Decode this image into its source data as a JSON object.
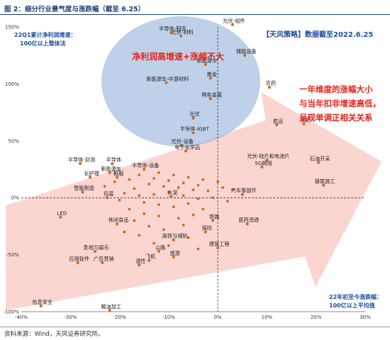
{
  "figure": {
    "title": "图 2：细分行业景气度与涨跌幅（截至 6.25）",
    "source": "资料来源：Wind，天风证券研究所。"
  },
  "annotations": {
    "y_note_line1": "22Q1累计净利润增速：",
    "y_note_line2": "100亿以上整体法",
    "x_note_line1": "22年初至今涨跌幅：",
    "x_note_line2": "100亿以上平均值",
    "ellipse_text": "净利润高增速+涨幅不大",
    "strategy_text": "【天风策略】数据截至2022.6.25",
    "arrow_text_line1": "一年维度的涨幅大小",
    "arrow_text_line2": "与当年扣非增速高低，",
    "arrow_text_line3": "呈现单调正相关关系"
  },
  "colors": {
    "point": "#d2691e",
    "ellipse": "#a9c1e0",
    "arrow": "#f7b4ac",
    "red_text": "#e8231b",
    "blue_text": "#1f4e9c"
  },
  "chart_data": {
    "type": "scatter",
    "title": "",
    "xlabel": "",
    "ylabel": "",
    "xlim": [
      -40,
      30
    ],
    "ylim": [
      -100,
      150
    ],
    "x_ticks": [
      -40,
      -30,
      -20,
      -10,
      0,
      10,
      20,
      30
    ],
    "x_tick_labels": [
      "-40%",
      "-30%",
      "-20%",
      "-10%",
      "0%",
      "10%",
      "20%",
      "30%"
    ],
    "y_ticks": [
      -100,
      -50,
      0,
      50,
      100,
      150
    ],
    "y_tick_labels": [
      "-100%",
      "-50%",
      "0%",
      "50%",
      "100%",
      "150%"
    ],
    "grid": false,
    "points": [
      {
        "label": "光伏-组件",
        "x": 3,
        "y": 152
      },
      {
        "label": "储能设备",
        "x": 5.5,
        "y": 125
      },
      {
        "label": "半导体-制造",
        "x": -9.5,
        "y": 145
      },
      {
        "label": "光伏-材料",
        "x": -7.5,
        "y": 142
      },
      {
        "label": "新能源车",
        "x": -2.5,
        "y": 117
      },
      {
        "label": "黄金",
        "x": -1.5,
        "y": 105
      },
      {
        "label": "新能源车-中游材料",
        "x": -10.5,
        "y": 101
      },
      {
        "label": "农药",
        "x": 10.5,
        "y": 97
      },
      {
        "label": "稀有金属",
        "x": -1.5,
        "y": 87
      },
      {
        "label": "航运",
        "x": 12,
        "y": 64
      },
      {
        "label": "化肥",
        "x": 17.5,
        "y": 65
      },
      {
        "label": "光伏",
        "x": -5,
        "y": 70
      },
      {
        "label": "半导体-IGBT",
        "x": -5,
        "y": 57
      },
      {
        "label": "光伏-设备",
        "x": -7.5,
        "y": 46
      },
      {
        "label": "电子化学品",
        "x": -6.5,
        "y": 41
      },
      {
        "label": "光伏-硅片和电池片",
        "x": 10,
        "y": 33
      },
      {
        "label": "石油开采",
        "x": 20.5,
        "y": 31
      },
      {
        "label": "5G网络",
        "x": 9,
        "y": 27
      },
      {
        "label": "建筑施工",
        "x": 21.5,
        "y": 11
      },
      {
        "label": "半导体-封测",
        "x": -28,
        "y": 30
      },
      {
        "label": "半导体",
        "x": -21.5,
        "y": 30
      },
      {
        "label": "新能源车",
        "x": -22,
        "y": 22
      },
      {
        "label": "半导体-设备",
        "x": -15,
        "y": 25
      },
      {
        "label": "长护理",
        "x": -26,
        "y": 18
      },
      {
        "label": "鞋服",
        "x": -20.5,
        "y": 18
      },
      {
        "label": "智能制造",
        "x": -27.5,
        "y": 5
      },
      {
        "label": "包装",
        "x": -22.5,
        "y": 0
      },
      {
        "label": "汽车零部件",
        "x": 5,
        "y": 3
      },
      {
        "label": "水泥",
        "x": -9.5,
        "y": 1
      },
      {
        "label": "LED",
        "x": -32,
        "y": -17
      },
      {
        "label": "休闲食品",
        "x": -20.5,
        "y": -23
      },
      {
        "label": "铁路",
        "x": -1,
        "y": -20
      },
      {
        "label": "医药流通",
        "x": 6,
        "y": -23
      },
      {
        "label": "保险",
        "x": -2.5,
        "y": -30
      },
      {
        "label": "高铁与城轨",
        "x": -9,
        "y": -37
      },
      {
        "label": "建筑工程",
        "x": 0,
        "y": -44
      },
      {
        "label": "影视与娱乐",
        "x": -25,
        "y": -47
      },
      {
        "label": "应用软件",
        "x": -28.5,
        "y": -57
      },
      {
        "label": "广告营销",
        "x": -23.5,
        "y": -57
      },
      {
        "label": "温性",
        "x": -16,
        "y": -59
      },
      {
        "label": "飞机",
        "x": -14,
        "y": -55
      },
      {
        "label": "公路",
        "x": -12,
        "y": -47
      },
      {
        "label": "旅游",
        "x": -9,
        "y": -52
      },
      {
        "label": "信息安全",
        "x": -36,
        "y": -95
      },
      {
        "label": "粮油加工",
        "x": -22,
        "y": -99
      }
    ],
    "background_points": [
      {
        "x": -12,
        "y": 22
      },
      {
        "x": -9,
        "y": 20
      },
      {
        "x": -6,
        "y": 18
      },
      {
        "x": -3,
        "y": 16
      },
      {
        "x": 0,
        "y": 14
      },
      {
        "x": -14,
        "y": 12
      },
      {
        "x": -11,
        "y": 10
      },
      {
        "x": -8,
        "y": 9
      },
      {
        "x": -5,
        "y": 7
      },
      {
        "x": -2,
        "y": 6
      },
      {
        "x": -17,
        "y": 8
      },
      {
        "x": -19,
        "y": 4
      },
      {
        "x": -16,
        "y": 2
      },
      {
        "x": -13,
        "y": 3
      },
      {
        "x": -10,
        "y": 5
      },
      {
        "x": -7,
        "y": 2
      },
      {
        "x": -4,
        "y": -1
      },
      {
        "x": -1,
        "y": 0
      },
      {
        "x": 2,
        "y": -3
      },
      {
        "x": -15,
        "y": -4
      },
      {
        "x": -12,
        "y": -6
      },
      {
        "x": -9,
        "y": -8
      },
      {
        "x": -6,
        "y": -5
      },
      {
        "x": -3,
        "y": -10
      },
      {
        "x": -18,
        "y": -10
      },
      {
        "x": -15,
        "y": -14
      },
      {
        "x": -12,
        "y": -16
      },
      {
        "x": -8,
        "y": -18
      },
      {
        "x": -5,
        "y": -15
      },
      {
        "x": -20,
        "y": -2
      },
      {
        "x": -23,
        "y": 10
      },
      {
        "x": -21,
        "y": 14
      },
      {
        "x": -18,
        "y": 16
      },
      {
        "x": -16,
        "y": 20
      },
      {
        "x": -13,
        "y": 17
      },
      {
        "x": -10,
        "y": 15
      },
      {
        "x": -7,
        "y": 13
      },
      {
        "x": -4,
        "y": 11
      },
      {
        "x": 1,
        "y": 9
      },
      {
        "x": 3,
        "y": 7
      },
      {
        "x": -17,
        "y": -20
      },
      {
        "x": -14,
        "y": -25
      },
      {
        "x": -11,
        "y": -28
      },
      {
        "x": -7,
        "y": -24
      },
      {
        "x": -19,
        "y": -30
      },
      {
        "x": -16,
        "y": -33
      },
      {
        "x": -13,
        "y": -40
      },
      {
        "x": -10,
        "y": -42
      },
      {
        "x": -6,
        "y": -35
      },
      {
        "x": -4,
        "y": -45
      }
    ]
  }
}
